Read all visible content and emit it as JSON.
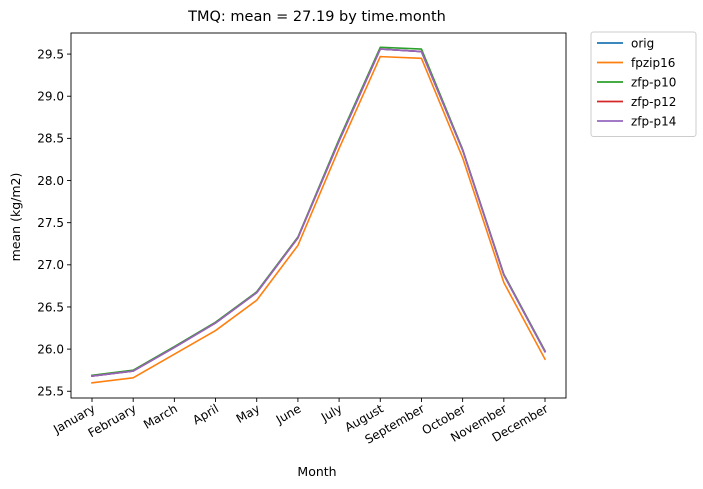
{
  "chart_data": {
    "type": "line",
    "title": "TMQ: mean = 27.19 by time.month",
    "xlabel": "Month",
    "ylabel": "mean (kg/m2)",
    "categories": [
      "January",
      "February",
      "March",
      "April",
      "May",
      "June",
      "July",
      "August",
      "September",
      "October",
      "November",
      "December"
    ],
    "ylim": [
      25.42,
      29.75
    ],
    "yticks": [
      25.5,
      26.0,
      26.5,
      27.0,
      27.5,
      28.0,
      28.5,
      29.0,
      29.5
    ],
    "ytick_labels": [
      "25.5",
      "26.0",
      "26.5",
      "27.0",
      "27.5",
      "28.0",
      "28.5",
      "29.0",
      "29.5"
    ],
    "grid": false,
    "legend_position": "outside-top-right",
    "series": [
      {
        "name": "orig",
        "color": "#1f77b4",
        "values": [
          25.68,
          25.74,
          26.02,
          26.31,
          26.67,
          27.32,
          28.47,
          29.56,
          29.53,
          28.36,
          26.88,
          25.97
        ]
      },
      {
        "name": "fpzip16",
        "color": "#ff7f0e",
        "values": [
          25.6,
          25.66,
          25.94,
          26.22,
          26.58,
          27.23,
          28.38,
          29.47,
          29.45,
          28.27,
          26.79,
          25.88
        ]
      },
      {
        "name": "zfp-p10",
        "color": "#2ca02c",
        "values": [
          25.69,
          25.75,
          26.03,
          26.32,
          26.68,
          27.33,
          28.49,
          29.58,
          29.56,
          28.37,
          26.89,
          25.98
        ]
      },
      {
        "name": "zfp-p12",
        "color": "#d62728",
        "values": [
          25.68,
          25.74,
          26.02,
          26.31,
          26.67,
          27.32,
          28.47,
          29.56,
          29.53,
          28.36,
          26.88,
          25.97
        ]
      },
      {
        "name": "zfp-p14",
        "color": "#9467bd",
        "values": [
          25.68,
          25.74,
          26.02,
          26.31,
          26.67,
          27.32,
          28.47,
          29.56,
          29.53,
          28.36,
          26.88,
          25.97
        ]
      }
    ]
  }
}
